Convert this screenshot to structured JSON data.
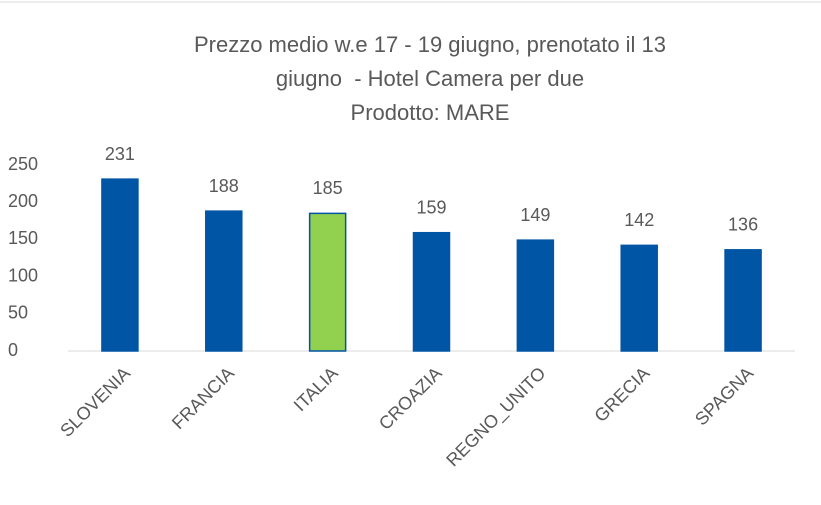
{
  "chart_data": {
    "type": "bar",
    "title": [
      "Prezzo medio w.e 17 - 19 giugno, prenotato il 13",
      "giugno  - Hotel Camera per due",
      "Prodotto: MARE"
    ],
    "categories": [
      "SLOVENIA",
      "FRANCIA",
      "ITALIA",
      "CROAZIA",
      "REGNO_UNITO",
      "GRECIA",
      "SPAGNA"
    ],
    "values": [
      231,
      188,
      185,
      159,
      149,
      142,
      136
    ],
    "colors": [
      "#0055a5",
      "#0055a5",
      "#92d050",
      "#0055a5",
      "#0055a5",
      "#0055a5",
      "#0055a5"
    ],
    "edgecolor": "#0055a5",
    "ylim": [
      0,
      250
    ],
    "yticks": [
      0,
      50,
      100,
      150,
      200,
      250
    ],
    "grid": false
  }
}
